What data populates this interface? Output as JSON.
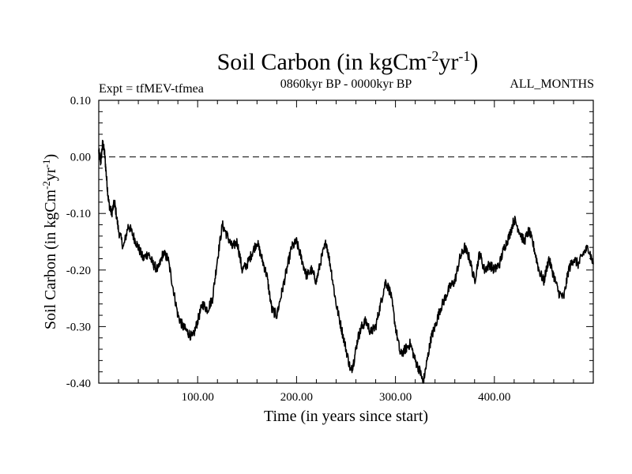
{
  "chart_data": {
    "type": "line",
    "title": {
      "main": "Soil Carbon (in kgCm",
      "sup1": "-2",
      "mid": "yr",
      "sup2": "-1",
      "end": ")"
    },
    "subtitle_left": "Expt = tfMEV-tfmea",
    "subtitle_center": "0860kyr BP - 0000kyr BP",
    "subtitle_right": "ALL_MONTHS",
    "xlabel": "Time (in years since start)",
    "ylabel": {
      "main": "Soil Carbon (in kgCm",
      "sup1": "-2",
      "mid": "yr",
      "sup2": "-1",
      "end": ")"
    },
    "xlim": [
      0,
      500
    ],
    "ylim": [
      -0.4,
      0.1
    ],
    "x_ticks_major": [
      100,
      200,
      300,
      400
    ],
    "x_tick_labels": [
      "100.00",
      "200.00",
      "300.00",
      "400.00"
    ],
    "y_ticks_major": [
      -0.4,
      -0.3,
      -0.2,
      -0.1,
      0.0,
      0.1
    ],
    "y_tick_labels": [
      "-0.40",
      "-0.30",
      "-0.20",
      "-0.10",
      "0.00",
      "0.10"
    ],
    "reference_line": {
      "y": 0.0,
      "style": "dashed"
    },
    "series": [
      {
        "name": "Soil Carbon",
        "x": [
          0,
          2,
          4,
          6,
          8,
          10,
          13,
          16,
          20,
          25,
          30,
          35,
          40,
          45,
          50,
          55,
          60,
          65,
          70,
          75,
          80,
          85,
          90,
          95,
          100,
          105,
          110,
          115,
          120,
          125,
          130,
          135,
          140,
          145,
          150,
          155,
          160,
          165,
          170,
          175,
          180,
          185,
          190,
          195,
          200,
          205,
          210,
          215,
          220,
          225,
          230,
          235,
          240,
          245,
          250,
          255,
          258,
          262,
          266,
          270,
          275,
          280,
          285,
          290,
          295,
          300,
          305,
          310,
          315,
          320,
          325,
          328,
          332,
          336,
          340,
          345,
          350,
          355,
          360,
          365,
          370,
          375,
          380,
          385,
          390,
          395,
          400,
          405,
          410,
          415,
          420,
          425,
          430,
          435,
          440,
          445,
          450,
          455,
          460,
          465,
          470,
          475,
          480,
          485,
          490,
          495,
          500
        ],
        "y": [
          0.01,
          -0.01,
          0.025,
          0.005,
          -0.04,
          -0.08,
          -0.1,
          -0.08,
          -0.13,
          -0.16,
          -0.12,
          -0.14,
          -0.16,
          -0.18,
          -0.17,
          -0.19,
          -0.2,
          -0.17,
          -0.18,
          -0.23,
          -0.28,
          -0.3,
          -0.31,
          -0.32,
          -0.29,
          -0.26,
          -0.27,
          -0.25,
          -0.18,
          -0.12,
          -0.14,
          -0.16,
          -0.15,
          -0.2,
          -0.19,
          -0.17,
          -0.15,
          -0.18,
          -0.21,
          -0.27,
          -0.28,
          -0.24,
          -0.2,
          -0.16,
          -0.15,
          -0.18,
          -0.21,
          -0.2,
          -0.22,
          -0.18,
          -0.15,
          -0.2,
          -0.26,
          -0.3,
          -0.34,
          -0.38,
          -0.36,
          -0.32,
          -0.3,
          -0.29,
          -0.31,
          -0.3,
          -0.26,
          -0.22,
          -0.24,
          -0.3,
          -0.35,
          -0.34,
          -0.33,
          -0.36,
          -0.38,
          -0.4,
          -0.36,
          -0.32,
          -0.3,
          -0.27,
          -0.25,
          -0.23,
          -0.22,
          -0.18,
          -0.16,
          -0.18,
          -0.22,
          -0.17,
          -0.2,
          -0.19,
          -0.2,
          -0.19,
          -0.16,
          -0.14,
          -0.11,
          -0.13,
          -0.15,
          -0.13,
          -0.16,
          -0.2,
          -0.22,
          -0.18,
          -0.21,
          -0.24,
          -0.25,
          -0.2,
          -0.18,
          -0.19,
          -0.17,
          -0.16,
          -0.19
        ]
      }
    ]
  }
}
